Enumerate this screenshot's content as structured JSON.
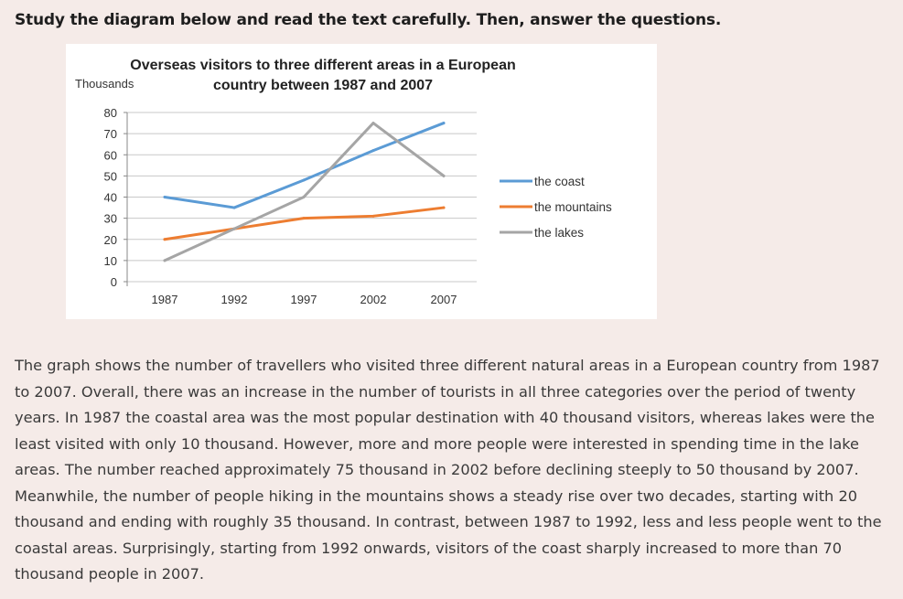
{
  "instruction": "Study the diagram below and read the text carefully. Then, answer the questions.",
  "chart_data": {
    "type": "line",
    "title_line1": "Overseas visitors to three different areas in a European",
    "title_line2": "country between 1987 and 2007",
    "ylabel": "Thousands",
    "xlabel": "",
    "categories": [
      "1987",
      "1992",
      "1997",
      "2002",
      "2007"
    ],
    "yticks": [
      0,
      10,
      20,
      30,
      40,
      50,
      60,
      70,
      80
    ],
    "ylim": [
      0,
      80
    ],
    "grid": true,
    "legend_position": "right",
    "series": [
      {
        "name": "the coast",
        "color": "#5b9bd5",
        "values": [
          40,
          35,
          48,
          62,
          75
        ]
      },
      {
        "name": "the mountains",
        "color": "#ed7d31",
        "values": [
          20,
          25,
          30,
          31,
          35
        ]
      },
      {
        "name": "the lakes",
        "color": "#a5a5a5",
        "values": [
          10,
          25,
          40,
          75,
          50
        ]
      }
    ]
  },
  "passage": "The graph shows the number of travellers who visited three different natural areas in a European country from 1987 to 2007. Overall, there was an increase in the number of tourists in all three categories over the period of twenty years. In 1987 the coastal area was the most popular destination with 40 thousand visitors, whereas lakes were the least visited with only 10 thousand. However, more and more people were interested in spending time in the lake areas. The number reached approximately 75 thousand in 2002 before declining steeply to 50 thousand by 2007. Meanwhile, the number of people hiking in the mountains shows a steady rise over two decades, starting with 20 thousand and ending with roughly 35 thousand. In contrast, between 1987 to 1992, less and less people went to the coastal areas. Surprisingly, starting from 1992 onwards, visitors of the coast sharply increased  to more than 70 thousand people in 2007."
}
